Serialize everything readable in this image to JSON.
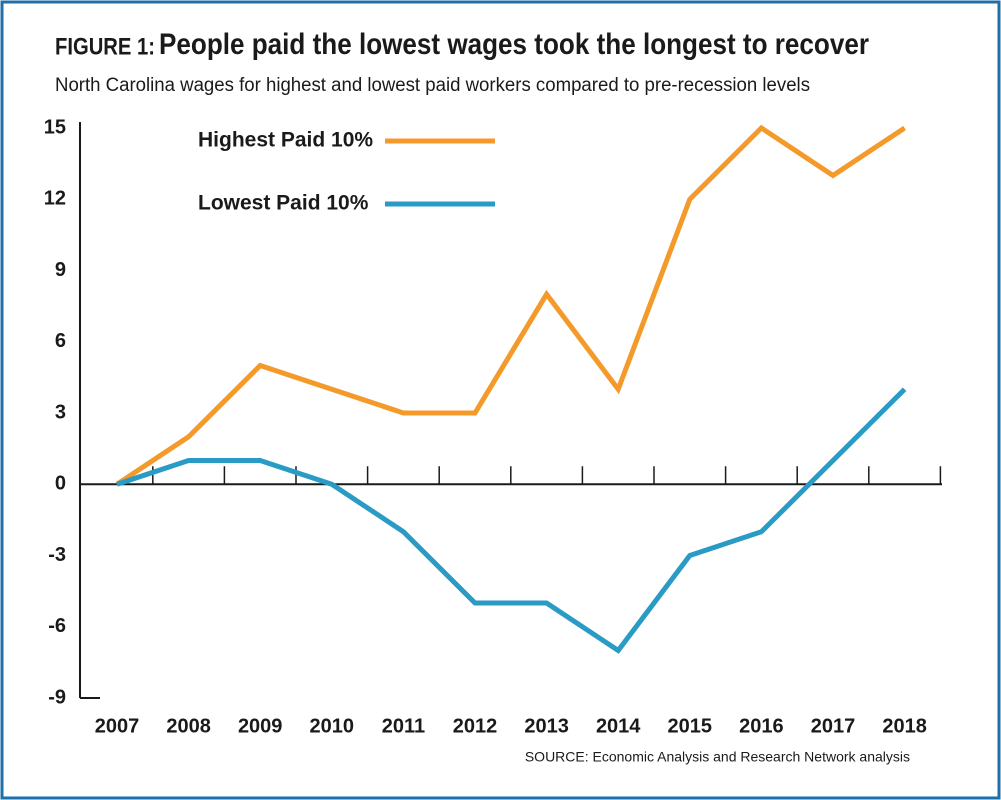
{
  "chart_data": {
    "type": "line",
    "figure_label": "FIGURE 1:",
    "title": "People paid the lowest wages took the longest to recover",
    "subtitle": "North Carolina wages for highest and lowest paid workers compared to pre-recession levels",
    "source": "SOURCE: Economic Analysis and Research Network analysis",
    "categories": [
      "2007",
      "2008",
      "2009",
      "2010",
      "2011",
      "2012",
      "2013",
      "2014",
      "2015",
      "2016",
      "2017",
      "2018"
    ],
    "series": [
      {
        "name": "Highest Paid 10%",
        "color": "#f39a2b",
        "values": [
          0,
          2,
          5,
          4,
          3,
          3,
          8,
          4,
          12,
          15,
          13,
          15
        ]
      },
      {
        "name": "Lowest Paid 10%",
        "color": "#2a9bc4",
        "values": [
          0,
          1,
          1,
          0,
          -2,
          -5,
          -5,
          -7,
          -3,
          -2,
          1,
          4
        ]
      }
    ],
    "ylim": [
      -9,
      15
    ],
    "yticks": [
      -9,
      -6,
      -3,
      0,
      3,
      6,
      9,
      12,
      15
    ],
    "grid": false,
    "legend": "top-left"
  }
}
